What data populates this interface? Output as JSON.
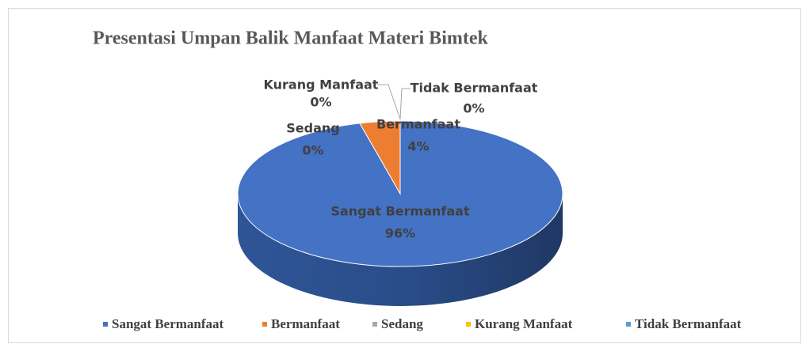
{
  "chart_data": {
    "type": "pie",
    "title": "Presentasi Umpan Balik Manfaat Materi Bimtek",
    "categories": [
      "Sangat Bermanfaat",
      "Bermanfaat",
      "Sedang",
      "Kurang Manfaat",
      "Tidak Bermanfaat"
    ],
    "values": [
      96,
      4,
      0,
      0,
      0
    ],
    "value_labels": [
      "96%",
      "4%",
      "0%",
      "0%",
      "0%"
    ],
    "colors": [
      "#4472c4",
      "#ed7d31",
      "#a5a5a5",
      "#ffc000",
      "#5b9bd5"
    ],
    "legend": "bottom"
  }
}
